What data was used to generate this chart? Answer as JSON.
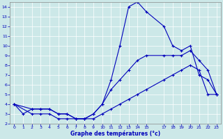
{
  "xlabel": "Graphe des températures (°c)",
  "xlim": [
    -0.5,
    23.5
  ],
  "ylim": [
    2,
    14.5
  ],
  "xticks": [
    0,
    1,
    2,
    3,
    4,
    5,
    6,
    7,
    8,
    9,
    10,
    11,
    12,
    13,
    14,
    15,
    17,
    18,
    19,
    20,
    21,
    22,
    23
  ],
  "yticks": [
    2,
    3,
    4,
    5,
    6,
    7,
    8,
    9,
    10,
    11,
    12,
    13,
    14
  ],
  "bg_color": "#cce8e8",
  "line_color": "#0000bb",
  "line1": {
    "x": [
      0,
      1,
      2,
      3,
      4,
      5,
      6,
      7,
      8,
      9,
      10,
      11,
      12,
      13,
      14,
      15,
      17,
      18,
      19,
      20,
      21,
      22,
      23
    ],
    "y": [
      4,
      3,
      3.5,
      3.5,
      3.5,
      3,
      3,
      2.5,
      2.5,
      3,
      4,
      6.5,
      10,
      14,
      14.5,
      13.5,
      12,
      10,
      9.5,
      10,
      7,
      6.5,
      5
    ]
  },
  "line2": {
    "x": [
      0,
      2,
      3,
      4,
      5,
      6,
      7,
      8,
      9,
      10,
      11,
      12,
      13,
      14,
      15,
      17,
      18,
      19,
      20,
      21,
      22,
      23
    ],
    "y": [
      4,
      3.5,
      3.5,
      3.5,
      3,
      3,
      2.5,
      2.5,
      3,
      4,
      5.5,
      6.5,
      7.5,
      8.5,
      9,
      9,
      9,
      9,
      9.5,
      8.5,
      7.5,
      5
    ]
  },
  "line3": {
    "x": [
      0,
      2,
      3,
      4,
      5,
      6,
      7,
      8,
      9,
      10,
      11,
      12,
      13,
      14,
      15,
      17,
      18,
      19,
      20,
      21,
      22,
      23
    ],
    "y": [
      4,
      3,
      3,
      3,
      2.5,
      2.5,
      2.5,
      2.5,
      2.5,
      3,
      3.5,
      4,
      4.5,
      5,
      5.5,
      6.5,
      7,
      7.5,
      8,
      7.5,
      5,
      5
    ]
  }
}
